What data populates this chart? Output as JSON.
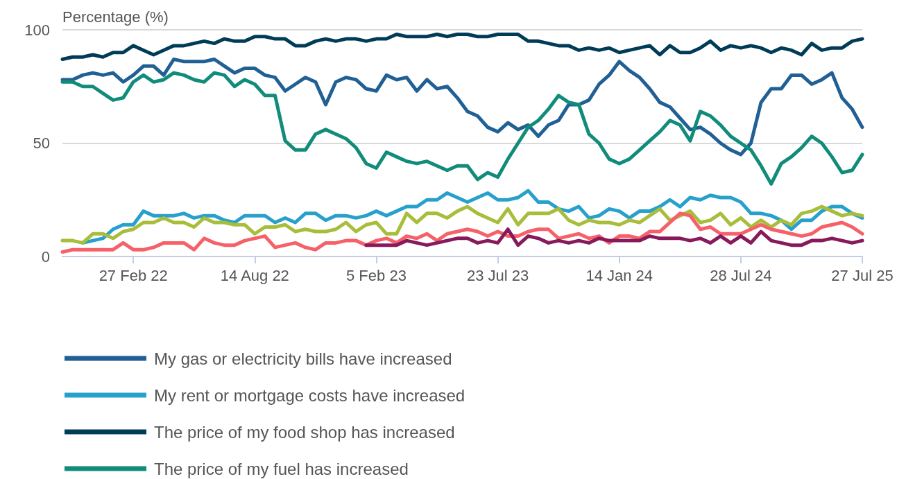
{
  "chart_data": {
    "type": "line",
    "ylabel": "Percentage (%)",
    "categories": [
      null,
      null,
      null,
      null,
      null,
      null,
      null,
      "27 Feb 22",
      null,
      null,
      null,
      null,
      null,
      null,
      null,
      null,
      null,
      null,
      null,
      "14 Aug 22",
      null,
      null,
      null,
      null,
      null,
      null,
      null,
      null,
      null,
      null,
      null,
      "5 Feb 23",
      null,
      null,
      null,
      null,
      null,
      null,
      null,
      null,
      null,
      null,
      null,
      "23 Jul 23",
      null,
      null,
      null,
      null,
      null,
      null,
      null,
      null,
      null,
      null,
      null,
      "14 Jan 24",
      null,
      null,
      null,
      null,
      null,
      null,
      null,
      null,
      null,
      null,
      null,
      "28 Jul 24",
      null,
      null,
      null,
      null,
      null,
      null,
      null,
      null,
      null,
      null,
      null,
      "27 Jul 25"
    ],
    "series": [
      {
        "name": "My gas or electricity bills have increased",
        "color": "#206095",
        "values": [
          78,
          78,
          80,
          81,
          80,
          81,
          77,
          80,
          84,
          84,
          80,
          87,
          86,
          86,
          86,
          87,
          84,
          81,
          83,
          83,
          80,
          79,
          73,
          76,
          79,
          77,
          67,
          77,
          79,
          78,
          74,
          73,
          80,
          78,
          79,
          73,
          78,
          74,
          75,
          70,
          64,
          62,
          57,
          55,
          59,
          56,
          58,
          53,
          58,
          60,
          67,
          67,
          69,
          76,
          80,
          86,
          82,
          79,
          74,
          68,
          66,
          61,
          56,
          57,
          54,
          50,
          47,
          45,
          50,
          68,
          74,
          74,
          80,
          80,
          76,
          78,
          81,
          70,
          65,
          57
        ]
      },
      {
        "name": "My rent or mortgage costs have increased",
        "color": "#27a0cc",
        "values": [
          null,
          null,
          6,
          7,
          8,
          12,
          14,
          14,
          20,
          18,
          18,
          18,
          19,
          17,
          18,
          18,
          16,
          15,
          18,
          18,
          18,
          15,
          17,
          15,
          19,
          19,
          16,
          18,
          18,
          17,
          18,
          20,
          18,
          20,
          22,
          22,
          25,
          25,
          28,
          26,
          24,
          26,
          28,
          25,
          25,
          26,
          29,
          24,
          24,
          21,
          20,
          22,
          17,
          18,
          21,
          20,
          17,
          20,
          20,
          22,
          25,
          22,
          26,
          25,
          27,
          26,
          26,
          24,
          19,
          19,
          18,
          16,
          12,
          16,
          16,
          20,
          22,
          22,
          19,
          17
        ]
      },
      {
        "name": "The price of my food shop has increased",
        "color": "#003c57",
        "values": [
          87,
          88,
          88,
          89,
          88,
          90,
          90,
          93,
          91,
          89,
          91,
          93,
          93,
          94,
          95,
          94,
          96,
          95,
          95,
          97,
          97,
          96,
          96,
          93,
          93,
          95,
          96,
          95,
          96,
          96,
          95,
          96,
          96,
          98,
          97,
          97,
          97,
          98,
          97,
          98,
          98,
          97,
          97,
          98,
          98,
          98,
          95,
          95,
          94,
          93,
          93,
          91,
          92,
          91,
          92,
          90,
          91,
          92,
          93,
          89,
          93,
          90,
          90,
          92,
          95,
          91,
          93,
          92,
          93,
          92,
          90,
          92,
          91,
          89,
          94,
          91,
          92,
          92,
          95,
          96
        ]
      },
      {
        "name": "The price of my fuel has increased",
        "color": "#118c7b",
        "values": [
          77,
          77,
          75,
          75,
          72,
          69,
          70,
          77,
          80,
          77,
          78,
          81,
          80,
          78,
          77,
          81,
          80,
          75,
          78,
          76,
          71,
          71,
          51,
          47,
          47,
          54,
          56,
          54,
          52,
          48,
          41,
          39,
          46,
          44,
          42,
          41,
          42,
          40,
          38,
          40,
          40,
          34,
          37,
          35,
          43,
          50,
          57,
          60,
          65,
          71,
          68,
          67,
          54,
          50,
          43,
          41,
          43,
          47,
          51,
          55,
          60,
          58,
          51,
          64,
          62,
          58,
          53,
          50,
          47,
          40,
          32,
          41,
          44,
          48,
          53,
          50,
          44,
          37,
          38,
          45
        ]
      },
      {
        "color": "#a8bd3a",
        "values": [
          7,
          7,
          6,
          10,
          10,
          8,
          11,
          12,
          15,
          15,
          17,
          15,
          15,
          13,
          17,
          15,
          15,
          14,
          14,
          10,
          13,
          13,
          14,
          11,
          12,
          11,
          11,
          12,
          15,
          11,
          14,
          15,
          10,
          10,
          19,
          15,
          19,
          19,
          17,
          20,
          22,
          19,
          17,
          15,
          21,
          14,
          19,
          19,
          19,
          21,
          16,
          14,
          16,
          15,
          15,
          14,
          16,
          15,
          18,
          21,
          16,
          18,
          20,
          15,
          16,
          19,
          14,
          17,
          13,
          16,
          13,
          16,
          14,
          19,
          20,
          22,
          20,
          18,
          19,
          18
        ]
      },
      {
        "color": "#f66068",
        "values": [
          2,
          3,
          3,
          3,
          3,
          3,
          6,
          3,
          3,
          4,
          6,
          6,
          6,
          3,
          8,
          6,
          5,
          5,
          7,
          8,
          9,
          4,
          5,
          6,
          4,
          3,
          6,
          6,
          7,
          7,
          5,
          7,
          8,
          6,
          9,
          8,
          10,
          7,
          10,
          11,
          12,
          11,
          9,
          11,
          9,
          9,
          11,
          12,
          12,
          8,
          9,
          10,
          8,
          9,
          6,
          9,
          9,
          8,
          11,
          11,
          15,
          19,
          18,
          12,
          13,
          10,
          10,
          10,
          12,
          14,
          12,
          11,
          10,
          9,
          10,
          13,
          14,
          15,
          13,
          10
        ]
      },
      {
        "color": "#871a5b",
        "values": [
          null,
          null,
          null,
          null,
          null,
          null,
          null,
          null,
          null,
          null,
          null,
          null,
          null,
          null,
          null,
          null,
          null,
          null,
          null,
          null,
          null,
          null,
          null,
          null,
          null,
          null,
          null,
          null,
          null,
          null,
          5,
          5,
          5,
          5,
          7,
          6,
          5,
          6,
          7,
          8,
          8,
          6,
          7,
          6,
          12,
          5,
          9,
          8,
          6,
          7,
          6,
          7,
          6,
          8,
          7,
          7,
          7,
          7,
          9,
          8,
          8,
          8,
          7,
          8,
          6,
          9,
          6,
          9,
          6,
          11,
          7,
          6,
          5,
          5,
          7,
          7,
          8,
          7,
          6,
          7
        ]
      }
    ],
    "ylim": [
      0,
      100
    ],
    "yticks": [
      0,
      50,
      100
    ],
    "grid": "y",
    "legend": "bottom",
    "marker": "none",
    "line_style": "solid"
  }
}
